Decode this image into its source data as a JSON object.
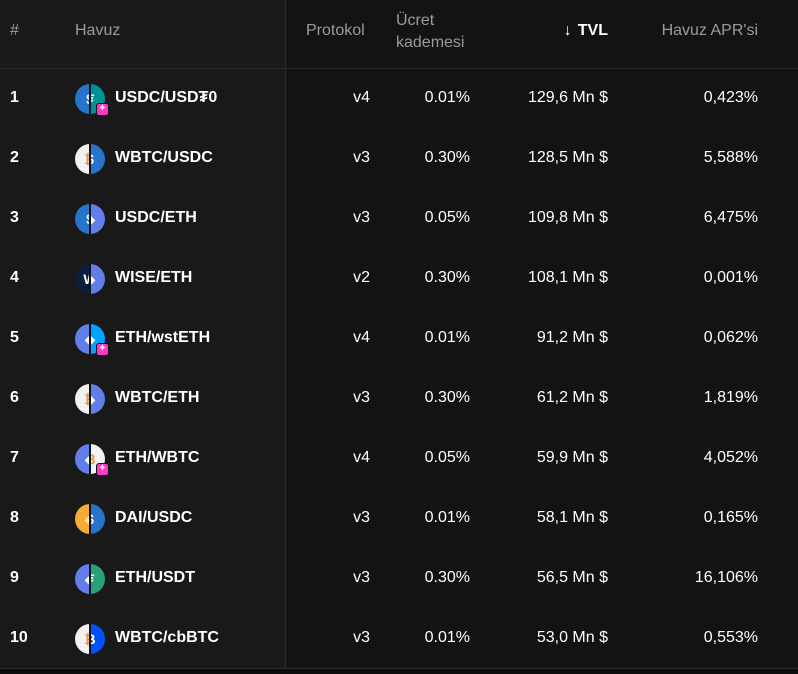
{
  "header": {
    "num": "#",
    "pool": "Havuz",
    "protocol": "Protokol",
    "fee_line1": "Ücret",
    "fee_line2": "kademesi",
    "tvl_arrow": "↓",
    "tvl": "TVL",
    "apr": "Havuz APR'si"
  },
  "rows": [
    {
      "num": "1",
      "pool": "USDC/USD₮0",
      "protocol": "v4",
      "fee": "0.01%",
      "tvl": "129,6 Mn $",
      "apr": "0,423%",
      "left_token": "usdc-icon",
      "right_token": "usdt0-icon",
      "left_color": "#2775ca",
      "right_color": "#009393",
      "hook_badge": "✦"
    },
    {
      "num": "2",
      "pool": "WBTC/USDC",
      "protocol": "v3",
      "fee": "0.30%",
      "tvl": "128,5 Mn $",
      "apr": "5,588%",
      "left_token": "wbtc-icon",
      "right_token": "usdc-icon",
      "left_color": "#f2f2f2",
      "right_color": "#2775ca"
    },
    {
      "num": "3",
      "pool": "USDC/ETH",
      "protocol": "v3",
      "fee": "0.05%",
      "tvl": "109,8 Mn $",
      "apr": "6,475%",
      "left_token": "usdc-icon",
      "right_token": "eth-icon",
      "left_color": "#2775ca",
      "right_color": "#627eea"
    },
    {
      "num": "4",
      "pool": "WISE/ETH",
      "protocol": "v2",
      "fee": "0.30%",
      "tvl": "108,1 Mn $",
      "apr": "0,001%",
      "left_token": "wise-icon",
      "right_token": "eth-icon",
      "left_color": "#0b1e3a",
      "right_color": "#627eea"
    },
    {
      "num": "5",
      "pool": "ETH/wstETH",
      "protocol": "v4",
      "fee": "0.01%",
      "tvl": "91,2 Mn $",
      "apr": "0,062%",
      "left_token": "eth-icon",
      "right_token": "wsteth-icon",
      "left_color": "#627eea",
      "right_color": "#00a3ff",
      "hook_badge": "✦"
    },
    {
      "num": "6",
      "pool": "WBTC/ETH",
      "protocol": "v3",
      "fee": "0.30%",
      "tvl": "61,2 Mn $",
      "apr": "1,819%",
      "left_token": "wbtc-icon",
      "right_token": "eth-icon",
      "left_color": "#f2f2f2",
      "right_color": "#627eea"
    },
    {
      "num": "7",
      "pool": "ETH/WBTC",
      "protocol": "v4",
      "fee": "0.05%",
      "tvl": "59,9 Mn $",
      "apr": "4,052%",
      "left_token": "eth-icon",
      "right_token": "wbtc-icon",
      "left_color": "#627eea",
      "right_color": "#f2f2f2",
      "hook_badge": "✦"
    },
    {
      "num": "8",
      "pool": "DAI/USDC",
      "protocol": "v3",
      "fee": "0.01%",
      "tvl": "58,1 Mn $",
      "apr": "0,165%",
      "left_token": "dai-icon",
      "right_token": "usdc-icon",
      "left_color": "#f5ac37",
      "right_color": "#2775ca"
    },
    {
      "num": "9",
      "pool": "ETH/USDT",
      "protocol": "v3",
      "fee": "0.30%",
      "tvl": "56,5 Mn $",
      "apr": "16,106%",
      "left_token": "eth-icon",
      "right_token": "usdt-icon",
      "left_color": "#627eea",
      "right_color": "#26a17b"
    },
    {
      "num": "10",
      "pool": "WBTC/cbBTC",
      "protocol": "v3",
      "fee": "0.01%",
      "tvl": "53,0 Mn $",
      "apr": "0,553%",
      "left_token": "wbtc-icon",
      "right_token": "cbbtc-icon",
      "left_color": "#f2f2f2",
      "right_color": "#0052ff"
    }
  ]
}
